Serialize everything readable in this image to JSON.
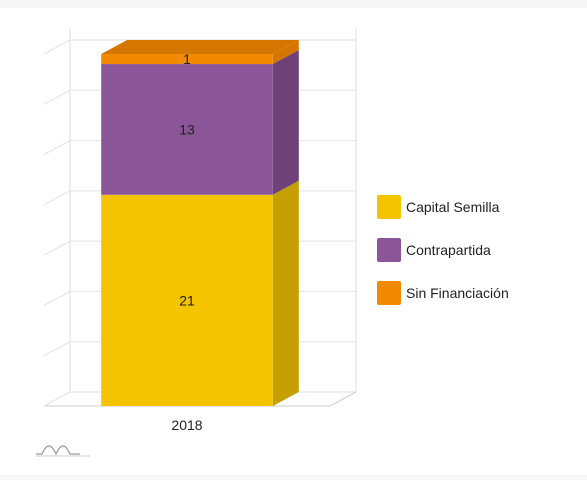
{
  "chart_data": {
    "type": "bar",
    "stacked": true,
    "three_d": true,
    "categories": [
      "2018"
    ],
    "series": [
      {
        "name": "Capital Semilla",
        "values": [
          21
        ],
        "color": "#f4c400",
        "side_color": "#c5a000"
      },
      {
        "name": "Contrapartida",
        "values": [
          13
        ],
        "color": "#8a5698",
        "side_color": "#6e4279"
      },
      {
        "name": "Sin Financiación",
        "values": [
          1
        ],
        "color": "#f18a00",
        "side_color": "#d57600"
      }
    ],
    "ylim": [
      0,
      35
    ],
    "grid": true,
    "legend_position": "right",
    "data_labels": true,
    "axis_labels_shown": false
  },
  "watermark_icon": "amcharts-logo-icon"
}
